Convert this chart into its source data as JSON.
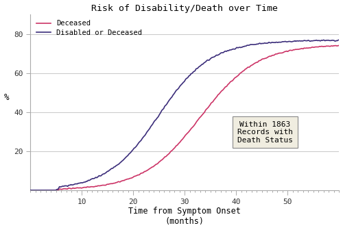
{
  "title": "Risk of Disability/Death over Time",
  "xlabel": "Time from Symptom Onset\n(months)",
  "ylabel": "%",
  "xlim": [
    0,
    60
  ],
  "ylim": [
    0,
    90
  ],
  "yticks": [
    20,
    40,
    60,
    80
  ],
  "xticks": [
    10,
    20,
    30,
    40,
    50
  ],
  "legend_deceased": "Deceased",
  "legend_disabled": "Disabled or Deceased",
  "color_deceased": "#cc3366",
  "color_disabled": "#3b2d7a",
  "annotation_text": "Within 1863\nRecords with\nDeath Status",
  "annotation_box_facecolor": "#f0ede0",
  "annotation_box_edgecolor": "#888888",
  "background_color": "#ffffff",
  "plot_bg_color": "#ffffff",
  "grid_color": "#cccccc",
  "spine_color": "#aaaaaa"
}
